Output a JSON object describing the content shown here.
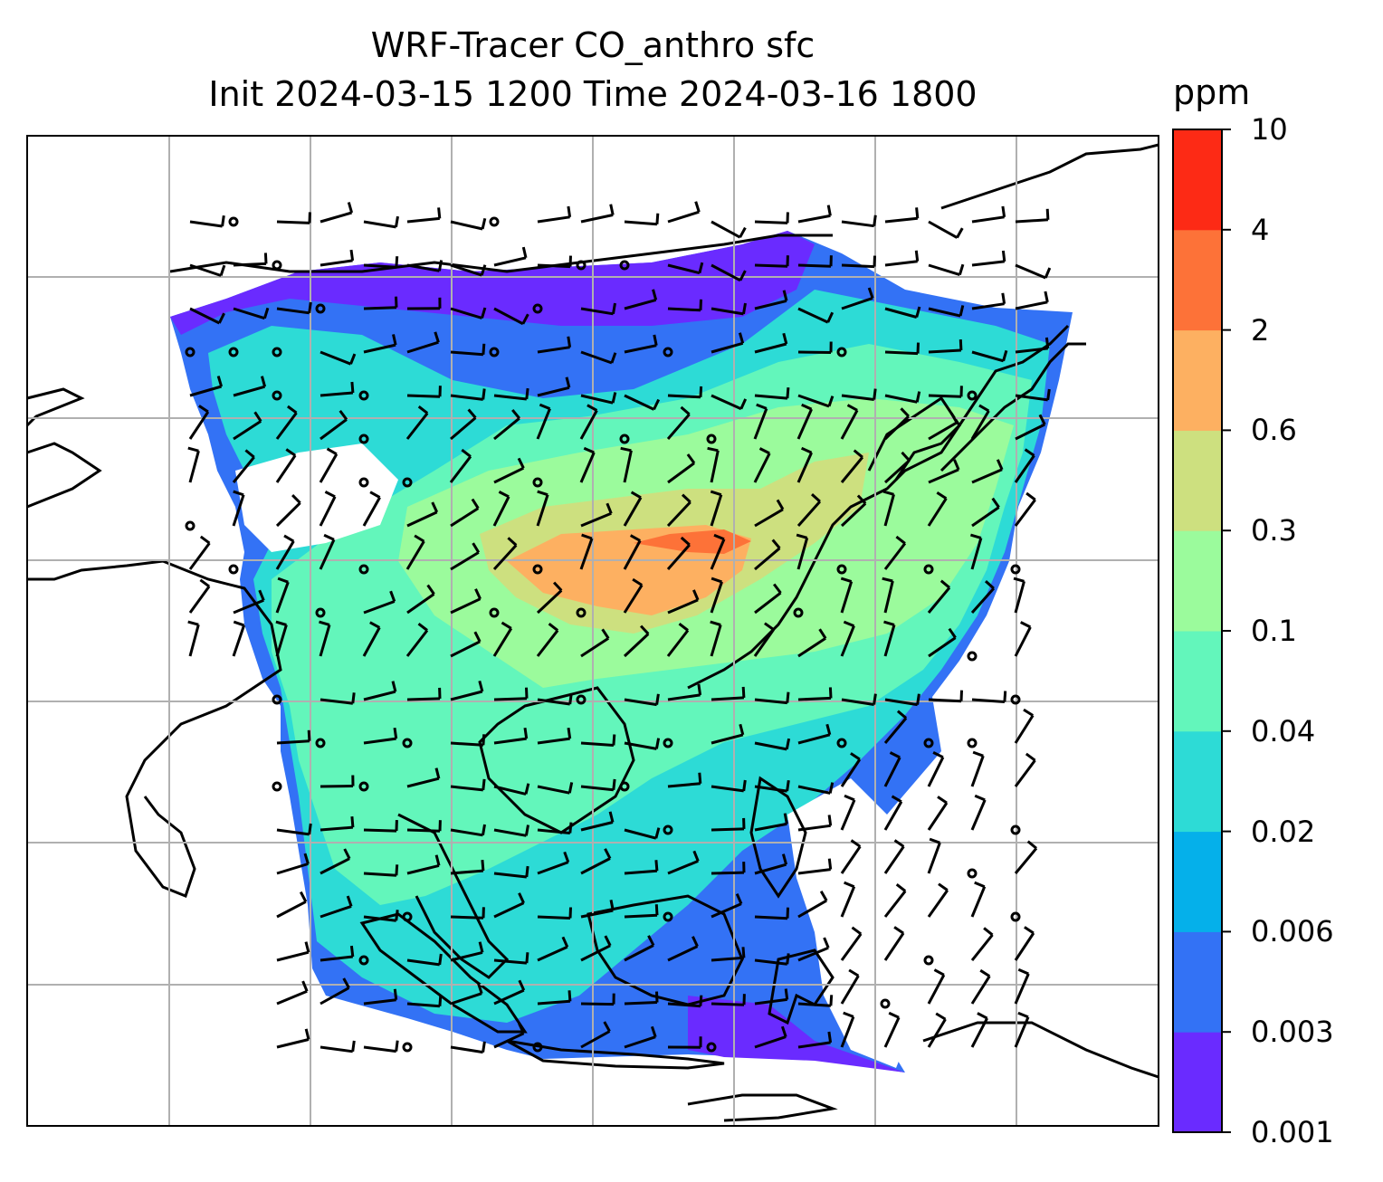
{
  "title": {
    "line1": "WRF-Tracer CO_anthro sfc",
    "line2": "Init 2024-03-15 1200 Time 2024-03-16 1800"
  },
  "colorbar": {
    "units": "ppm",
    "ticks": [
      "0.001",
      "0.003",
      "0.006",
      "0.02",
      "0.04",
      "0.1",
      "0.3",
      "0.6",
      "2",
      "4",
      "10"
    ],
    "colors": [
      "#6a2bff",
      "#3372f5",
      "#05b0ea",
      "#2ddbd6",
      "#63f6bb",
      "#9bfb9c",
      "#cde07f",
      "#fdb061",
      "#fd7238",
      "#fd2a15"
    ]
  },
  "map": {
    "field": "CO_anthro surface concentration",
    "overlay": "wind barbs",
    "gridlines": true,
    "coastlines": true
  }
}
